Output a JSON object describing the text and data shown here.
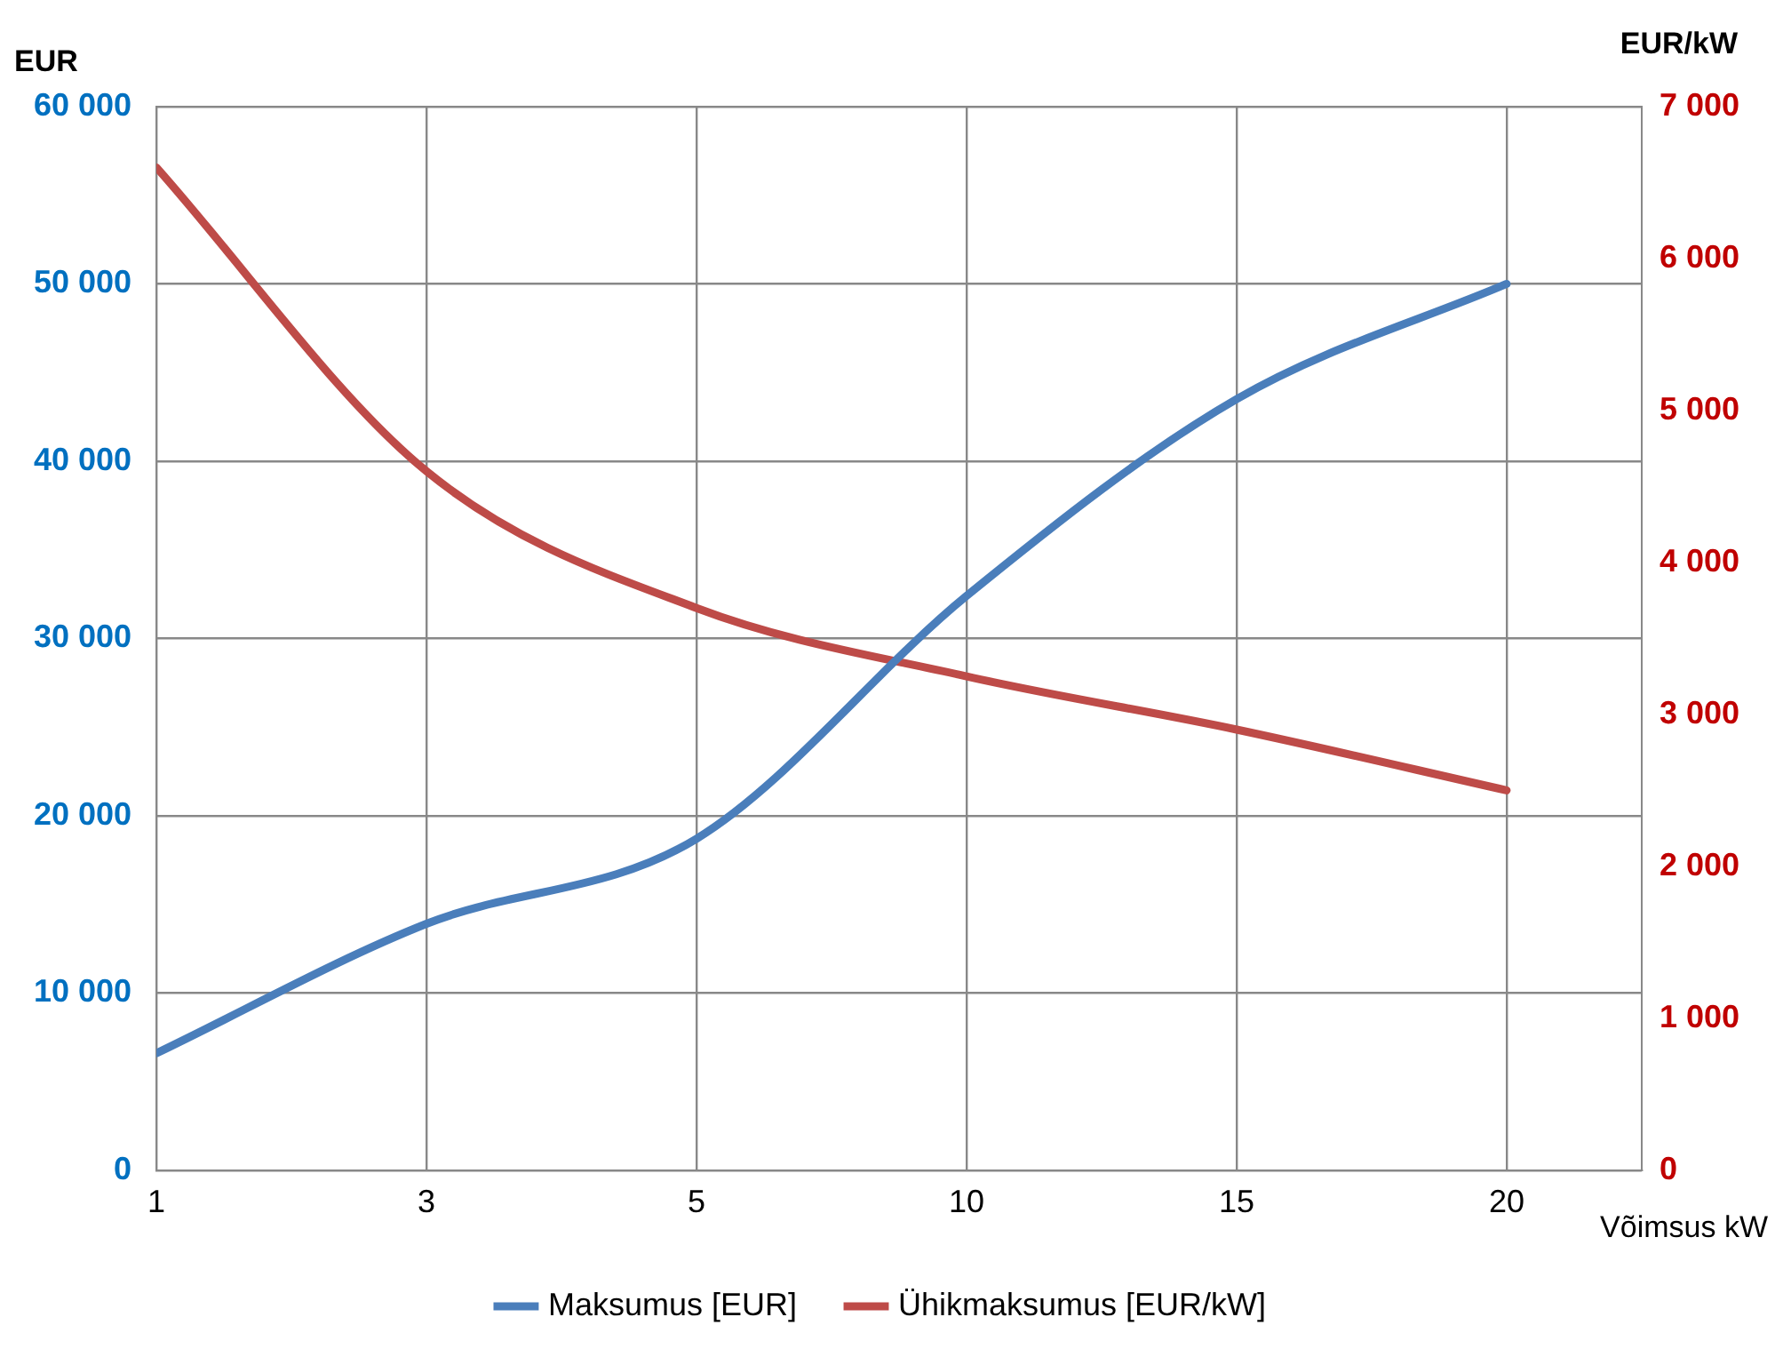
{
  "chart_data": {
    "type": "line",
    "xlabel": "Võimsus kW",
    "ylabel": "EUR",
    "y2label": "EUR/kW",
    "categories": [
      "1",
      "3",
      "5",
      "10",
      "15",
      "20"
    ],
    "series": [
      {
        "name": "Maksumus [EUR]",
        "color": "#4a7ebb",
        "values": [
          6600,
          13900,
          18700,
          32400,
          43500,
          50000
        ]
      },
      {
        "name": "Ühikmaksumus [EUR/kW]",
        "color": "#be4b48",
        "axis": "y2",
        "values": [
          6600,
          4600,
          3700,
          3250,
          2900,
          2500
        ]
      }
    ],
    "ylim": [
      0,
      60000
    ],
    "yticks": [
      {
        "value": 0,
        "label": "0"
      },
      {
        "value": 10000,
        "label": "10 000"
      },
      {
        "value": 20000,
        "label": "20 000"
      },
      {
        "value": 30000,
        "label": "30 000"
      },
      {
        "value": 40000,
        "label": "40 000"
      },
      {
        "value": 50000,
        "label": "50 000"
      },
      {
        "value": 60000,
        "label": "60 000"
      }
    ],
    "y2lim": [
      0,
      7000
    ],
    "y2ticks": [
      {
        "value": 0,
        "label": "0"
      },
      {
        "value": 1000,
        "label": "1 000"
      },
      {
        "value": 2000,
        "label": "2 000"
      },
      {
        "value": 3000,
        "label": "3 000"
      },
      {
        "value": 4000,
        "label": "4 000"
      },
      {
        "value": 5000,
        "label": "5 000"
      },
      {
        "value": 6000,
        "label": "6 000"
      },
      {
        "value": 7000,
        "label": "7 000"
      }
    ],
    "grid": true,
    "legend": "bottom",
    "marker": "none",
    "line_style": "solid"
  }
}
